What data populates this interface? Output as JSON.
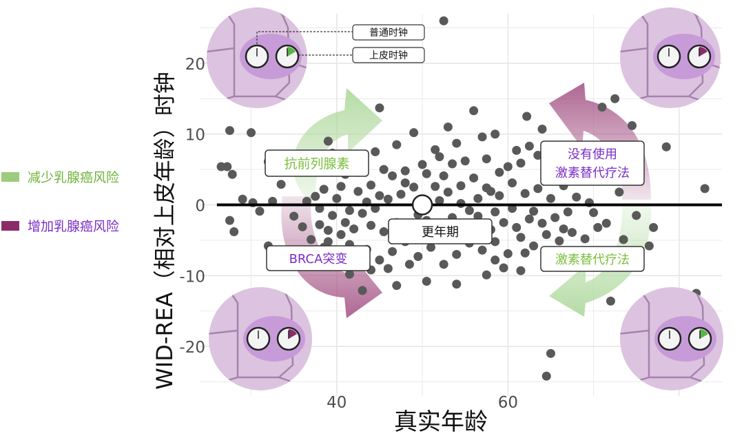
{
  "legend": {
    "items": [
      {
        "label": "减少乳腺癌风险",
        "color": "#9ccc7c",
        "text_color": "#6fb43a"
      },
      {
        "label": "增加乳腺癌风险",
        "color": "#8b2b68",
        "text_color": "#7a2dc6"
      }
    ]
  },
  "colors": {
    "green_arrow": "#a9d696",
    "purple_arrow": "#a14d80",
    "green_text": "#7bbf3f",
    "purple_text": "#7a2dc6",
    "points": "#595959",
    "grid": "#e6e6e6",
    "cell_bg": "#dcc3df",
    "cell_edge": "#a583ad",
    "nucleus": "#c79bd8"
  },
  "annotations": {
    "ordinary_clock": "普通时钟",
    "epithelial_clock": "上皮时钟",
    "antiprostate": "抗前列腺素",
    "brca": "BRCA突变",
    "menopause": "更年期",
    "no_hrt_line1": "没有使用",
    "no_hrt_line2": "激素替代疗法",
    "hrt": "激素替代疗法"
  },
  "chart_data": {
    "type": "scatter",
    "title": "",
    "xlabel": "真实年龄",
    "ylabel": "WID-REA（相对上皮年龄）时钟",
    "xlim": [
      24,
      85
    ],
    "ylim": [
      -27,
      27
    ],
    "x_ticks": [
      40,
      60
    ],
    "y_ticks": [
      20,
      10,
      0,
      -10,
      -20
    ],
    "grid": true,
    "reference_line": {
      "y": 0,
      "x_range": [
        26,
        85
      ]
    },
    "highlight_point": {
      "x": 50,
      "y": 0,
      "label": "更年期"
    },
    "points": [
      {
        "x": 52.5,
        "y": 26
      },
      {
        "x": 62.2,
        "y": 12.5
      },
      {
        "x": 72.5,
        "y": 15
      },
      {
        "x": 74.5,
        "y": 11.2
      },
      {
        "x": 78.5,
        "y": 8.2
      },
      {
        "x": 83,
        "y": 2.3
      },
      {
        "x": 71,
        "y": 13.8
      },
      {
        "x": 45,
        "y": 13.7
      },
      {
        "x": 27.5,
        "y": 10.5
      },
      {
        "x": 30,
        "y": 10.2
      },
      {
        "x": 32,
        "y": 6.1
      },
      {
        "x": 26.5,
        "y": 5.4
      },
      {
        "x": 27.2,
        "y": 5.4
      },
      {
        "x": 27.8,
        "y": 4.3
      },
      {
        "x": 29,
        "y": 0.8
      },
      {
        "x": 30.2,
        "y": 0.3
      },
      {
        "x": 27.5,
        "y": -2.2
      },
      {
        "x": 28,
        "y": -3.8
      },
      {
        "x": 31,
        "y": -0.9
      },
      {
        "x": 32,
        "y": -5.8
      },
      {
        "x": 32.5,
        "y": 0.5
      },
      {
        "x": 39,
        "y": 9
      },
      {
        "x": 39.5,
        "y": 7.3
      },
      {
        "x": 41.5,
        "y": 5.4
      },
      {
        "x": 41,
        "y": 4.3
      },
      {
        "x": 42.5,
        "y": 4.6
      },
      {
        "x": 43,
        "y": 6.4
      },
      {
        "x": 44.5,
        "y": 7.5
      },
      {
        "x": 45.5,
        "y": 5
      },
      {
        "x": 47,
        "y": 8.5
      },
      {
        "x": 49,
        "y": 10.2
      },
      {
        "x": 51.5,
        "y": 7.8
      },
      {
        "x": 53,
        "y": 11
      },
      {
        "x": 54,
        "y": 8.7
      },
      {
        "x": 56,
        "y": 13.3
      },
      {
        "x": 57,
        "y": 9.6
      },
      {
        "x": 58.5,
        "y": 10
      },
      {
        "x": 61,
        "y": 7.7
      },
      {
        "x": 62.5,
        "y": 8.3
      },
      {
        "x": 63.5,
        "y": 7
      },
      {
        "x": 64,
        "y": 10.7
      },
      {
        "x": 60,
        "y": 5.4
      },
      {
        "x": 57.5,
        "y": 6.5
      },
      {
        "x": 55,
        "y": 6.2
      },
      {
        "x": 53.5,
        "y": 5.8
      },
      {
        "x": 52,
        "y": 6.8
      },
      {
        "x": 50,
        "y": 5.7
      },
      {
        "x": 48,
        "y": 4.8
      },
      {
        "x": 46.5,
        "y": 4.1
      },
      {
        "x": 44,
        "y": 2.8
      },
      {
        "x": 42.5,
        "y": 1.9
      },
      {
        "x": 40.5,
        "y": 2.6
      },
      {
        "x": 38.5,
        "y": 2.2
      },
      {
        "x": 37.5,
        "y": 1.2
      },
      {
        "x": 36.5,
        "y": 0.5
      },
      {
        "x": 38,
        "y": -0.5
      },
      {
        "x": 39.5,
        "y": -1.5
      },
      {
        "x": 41.5,
        "y": -0.8
      },
      {
        "x": 43,
        "y": -1.2
      },
      {
        "x": 44.5,
        "y": -0.5
      },
      {
        "x": 46,
        "y": 0.8
      },
      {
        "x": 47.5,
        "y": 1.5
      },
      {
        "x": 49,
        "y": 2.5
      },
      {
        "x": 51.5,
        "y": 2.6
      },
      {
        "x": 53,
        "y": 1.8
      },
      {
        "x": 54.5,
        "y": 2.7
      },
      {
        "x": 56,
        "y": 3.8
      },
      {
        "x": 57.5,
        "y": 2.4
      },
      {
        "x": 59,
        "y": 1.3
      },
      {
        "x": 60.5,
        "y": 3.1
      },
      {
        "x": 62,
        "y": 1.6
      },
      {
        "x": 63.5,
        "y": 2.3
      },
      {
        "x": 65,
        "y": 0.9
      },
      {
        "x": 66.5,
        "y": 2.7
      },
      {
        "x": 68,
        "y": 1.1
      },
      {
        "x": 69.5,
        "y": 0.3
      },
      {
        "x": 67,
        "y": -1
      },
      {
        "x": 65.5,
        "y": -1.8
      },
      {
        "x": 64,
        "y": -2.6
      },
      {
        "x": 62.5,
        "y": -2
      },
      {
        "x": 61,
        "y": -3.2
      },
      {
        "x": 59.5,
        "y": -2.5
      },
      {
        "x": 58,
        "y": -3.5
      },
      {
        "x": 56.5,
        "y": -1.6
      },
      {
        "x": 55,
        "y": -2.9
      },
      {
        "x": 53.5,
        "y": -1.8
      },
      {
        "x": 52,
        "y": -3.6
      },
      {
        "x": 50.5,
        "y": -2.2
      },
      {
        "x": 48.5,
        "y": -3.1
      },
      {
        "x": 47,
        "y": -2.5
      },
      {
        "x": 45.5,
        "y": -3.8
      },
      {
        "x": 44,
        "y": -2.9
      },
      {
        "x": 42,
        "y": -3.4
      },
      {
        "x": 40.5,
        "y": -4.2
      },
      {
        "x": 39,
        "y": -3.6
      },
      {
        "x": 38,
        "y": -2.8
      },
      {
        "x": 37,
        "y": -4.9
      },
      {
        "x": 38.5,
        "y": -6
      },
      {
        "x": 40,
        "y": -7.1
      },
      {
        "x": 41.5,
        "y": -5.6
      },
      {
        "x": 43.5,
        "y": -6.3
      },
      {
        "x": 45,
        "y": -7.8
      },
      {
        "x": 46.5,
        "y": -6.6
      },
      {
        "x": 48,
        "y": -5.2
      },
      {
        "x": 49.5,
        "y": -7.3
      },
      {
        "x": 51,
        "y": -6
      },
      {
        "x": 52.5,
        "y": -8.4
      },
      {
        "x": 54,
        "y": -7
      },
      {
        "x": 55.5,
        "y": -5.4
      },
      {
        "x": 57,
        "y": -6.4
      },
      {
        "x": 58.5,
        "y": -5.2
      },
      {
        "x": 60,
        "y": -6.9
      },
      {
        "x": 61.5,
        "y": -4.6
      },
      {
        "x": 63,
        "y": -5.8
      },
      {
        "x": 64.5,
        "y": -4.2
      },
      {
        "x": 66,
        "y": -5.1
      },
      {
        "x": 67.5,
        "y": -3.9
      },
      {
        "x": 69,
        "y": -4.8
      },
      {
        "x": 70.5,
        "y": -3.2
      },
      {
        "x": 59.5,
        "y": -8.9
      },
      {
        "x": 61.5,
        "y": -9.3
      },
      {
        "x": 57.5,
        "y": -9.9
      },
      {
        "x": 54,
        "y": -11.2
      },
      {
        "x": 50.5,
        "y": -10.8
      },
      {
        "x": 47,
        "y": -11.4
      },
      {
        "x": 44,
        "y": -9.2
      },
      {
        "x": 41.5,
        "y": -9.8
      },
      {
        "x": 43,
        "y": -12.1
      },
      {
        "x": 48.5,
        "y": -8.4
      },
      {
        "x": 65,
        "y": -21
      },
      {
        "x": 64.5,
        "y": -24.2
      },
      {
        "x": 82,
        "y": -12.5
      },
      {
        "x": 72,
        "y": -13.6
      },
      {
        "x": 77,
        "y": -3.2
      },
      {
        "x": 76.5,
        "y": -5.8
      },
      {
        "x": 73.5,
        "y": -4.9
      },
      {
        "x": 75,
        "y": -1.5
      },
      {
        "x": 71.5,
        "y": -2.6
      },
      {
        "x": 70,
        "y": -1.1
      },
      {
        "x": 73,
        "y": 1.8
      },
      {
        "x": 46.5,
        "y": -4.5
      },
      {
        "x": 49.5,
        "y": -1.4
      },
      {
        "x": 55.5,
        "y": -0.8
      },
      {
        "x": 58.5,
        "y": -1
      },
      {
        "x": 60.5,
        "y": -0.5
      },
      {
        "x": 63,
        "y": -0.9
      },
      {
        "x": 52,
        "y": 0.6
      },
      {
        "x": 54.5,
        "y": 0.2
      },
      {
        "x": 56.5,
        "y": 0.9
      },
      {
        "x": 58,
        "y": 1.9
      },
      {
        "x": 45,
        "y": 1.3
      },
      {
        "x": 43.5,
        "y": 0.4
      },
      {
        "x": 40,
        "y": 0.9
      },
      {
        "x": 41,
        "y": -2.5
      },
      {
        "x": 36,
        "y": -3.1
      },
      {
        "x": 35,
        "y": -1.6
      },
      {
        "x": 34.5,
        "y": 4.8
      },
      {
        "x": 33.5,
        "y": 2.9
      },
      {
        "x": 52.5,
        "y": 4.1
      },
      {
        "x": 48,
        "y": 3.1
      },
      {
        "x": 50.5,
        "y": 4.4
      },
      {
        "x": 59,
        "y": 4.6
      },
      {
        "x": 61.5,
        "y": 5.9
      },
      {
        "x": 66,
        "y": 4.2
      },
      {
        "x": 67.5,
        "y": 5.6
      },
      {
        "x": 69,
        "y": 3.4
      },
      {
        "x": 70.5,
        "y": 5.2
      },
      {
        "x": 72,
        "y": 6.3
      },
      {
        "x": 65.5,
        "y": 6.8
      },
      {
        "x": 56,
        "y": -4.2
      },
      {
        "x": 53,
        "y": -4.9
      },
      {
        "x": 51,
        "y": -4.1
      },
      {
        "x": 62,
        "y": -6.8
      },
      {
        "x": 66.5,
        "y": -3.4
      },
      {
        "x": 58.5,
        "y": -7.8
      },
      {
        "x": 46,
        "y": -9
      },
      {
        "x": 39,
        "y": -5.2
      },
      {
        "x": 37.5,
        "y": -8.2
      },
      {
        "x": 42,
        "y": -7.9
      }
    ]
  }
}
